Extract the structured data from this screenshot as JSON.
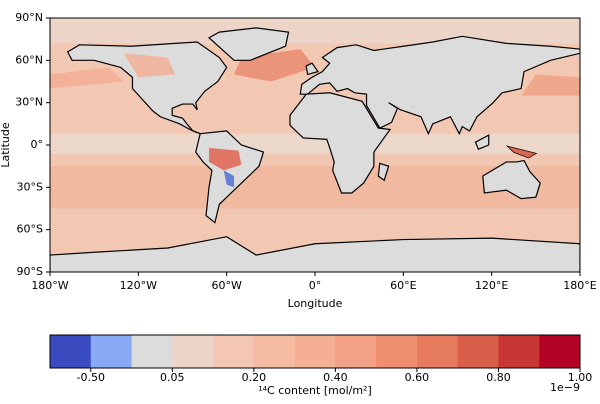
{
  "chart_data": {
    "type": "map",
    "xlabel": "Longitude",
    "ylabel": "Latitude",
    "xlim": [
      -180,
      180
    ],
    "ylim": [
      -90,
      90
    ],
    "xticks": [
      {
        "value": -180,
        "label": "180°W"
      },
      {
        "value": -120,
        "label": "120°W"
      },
      {
        "value": -60,
        "label": "60°W"
      },
      {
        "value": 0,
        "label": "0°"
      },
      {
        "value": 60,
        "label": "60°E"
      },
      {
        "value": 120,
        "label": "120°E"
      },
      {
        "value": 180,
        "label": "180°E"
      }
    ],
    "yticks": [
      {
        "value": -90,
        "label": "90°S"
      },
      {
        "value": -60,
        "label": "60°S"
      },
      {
        "value": -30,
        "label": "30°S"
      },
      {
        "value": 0,
        "label": "0°"
      },
      {
        "value": 30,
        "label": "30°N"
      },
      {
        "value": 60,
        "label": "60°N"
      },
      {
        "value": 90,
        "label": "90°N"
      }
    ],
    "colorbar": {
      "label": "¹⁴C content [mol/m²]",
      "offset_label": "1e−9",
      "colors": [
        "#3b4cc0",
        "#88aaf5",
        "#dcdcdc",
        "#ecd5c8",
        "#f3c7b1",
        "#f5bca2",
        "#f5b093",
        "#f2a184",
        "#ee8f70",
        "#e67a5d",
        "#da5f4a",
        "#c83735",
        "#b40426"
      ],
      "ticks": [
        {
          "value": -0.5,
          "label": "-0.50"
        },
        {
          "value": 0.05,
          "label": "0.05"
        },
        {
          "value": 0.2,
          "label": "0.20"
        },
        {
          "value": 0.4,
          "label": "0.40"
        },
        {
          "value": 0.6,
          "label": "0.60"
        },
        {
          "value": 0.8,
          "label": "0.80"
        },
        {
          "value": 1.0,
          "label": "1.00"
        }
      ]
    }
  }
}
